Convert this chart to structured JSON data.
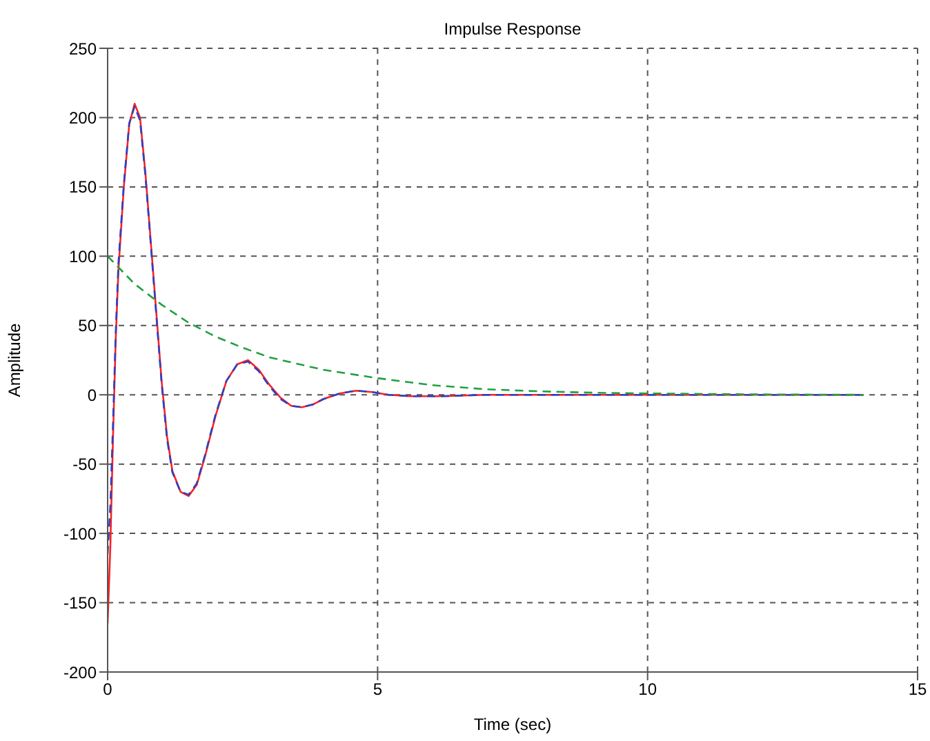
{
  "chart_data": {
    "type": "line",
    "title": "Impulse Response",
    "xlabel": "Time (sec)",
    "ylabel": "Amplitude",
    "xlim": [
      0,
      15
    ],
    "xticks": [
      0,
      5,
      10,
      15
    ],
    "ylim": [
      -200,
      250
    ],
    "yticks": [
      -200,
      -150,
      -100,
      -50,
      0,
      50,
      100,
      150,
      200,
      250
    ],
    "grid": true,
    "legend": false,
    "marker": "none",
    "series": [
      {
        "color": "#ff2020",
        "line_style": "solid",
        "x": [
          0,
          0.05,
          0.1,
          0.15,
          0.2,
          0.3,
          0.4,
          0.5,
          0.6,
          0.7,
          0.8,
          0.9,
          1.0,
          1.1,
          1.2,
          1.35,
          1.5,
          1.65,
          1.8,
          2.0,
          2.2,
          2.4,
          2.6,
          2.8,
          3.0,
          3.2,
          3.4,
          3.6,
          3.8,
          4.0,
          4.3,
          4.6,
          4.9,
          5.2,
          5.6,
          6.2,
          7,
          14
        ],
        "values": [
          -165,
          -110,
          -30,
          40,
          90,
          150,
          195,
          210,
          200,
          160,
          110,
          60,
          10,
          -30,
          -55,
          -70,
          -73,
          -65,
          -45,
          -15,
          10,
          22,
          25,
          18,
          7,
          -2,
          -8,
          -9,
          -7,
          -3,
          1,
          3,
          2,
          0,
          -1,
          -1,
          0,
          0
        ]
      },
      {
        "color": "#3040c0",
        "line_style": "dashed",
        "x": [
          0,
          0.05,
          0.1,
          0.15,
          0.2,
          0.3,
          0.4,
          0.5,
          0.6,
          0.7,
          0.8,
          0.9,
          1.0,
          1.1,
          1.2,
          1.35,
          1.5,
          1.65,
          1.8,
          2.0,
          2.2,
          2.4,
          2.6,
          2.8,
          3.0,
          3.2,
          3.4,
          3.6,
          3.8,
          4.0,
          4.3,
          4.6,
          4.9,
          5.2,
          5.6,
          6.2,
          7,
          14
        ],
        "values": [
          -115,
          -80,
          -20,
          45,
          95,
          152,
          196,
          208,
          198,
          158,
          108,
          58,
          8,
          -32,
          -56,
          -70,
          -72,
          -64,
          -44,
          -14,
          10,
          22,
          24,
          17,
          6,
          -3,
          -8,
          -9,
          -7,
          -3,
          1,
          3,
          2,
          0,
          -1,
          -1,
          0,
          0
        ]
      },
      {
        "color": "#20a040",
        "line_style": "dashed",
        "x": [
          0,
          0.5,
          1,
          1.5,
          2,
          2.5,
          3,
          4,
          5,
          6,
          7,
          8,
          9,
          10,
          12,
          14
        ],
        "values": [
          100,
          80,
          65,
          52,
          42,
          34,
          27,
          18,
          12,
          7,
          4,
          2.5,
          1.5,
          1,
          0.3,
          0
        ]
      }
    ]
  }
}
